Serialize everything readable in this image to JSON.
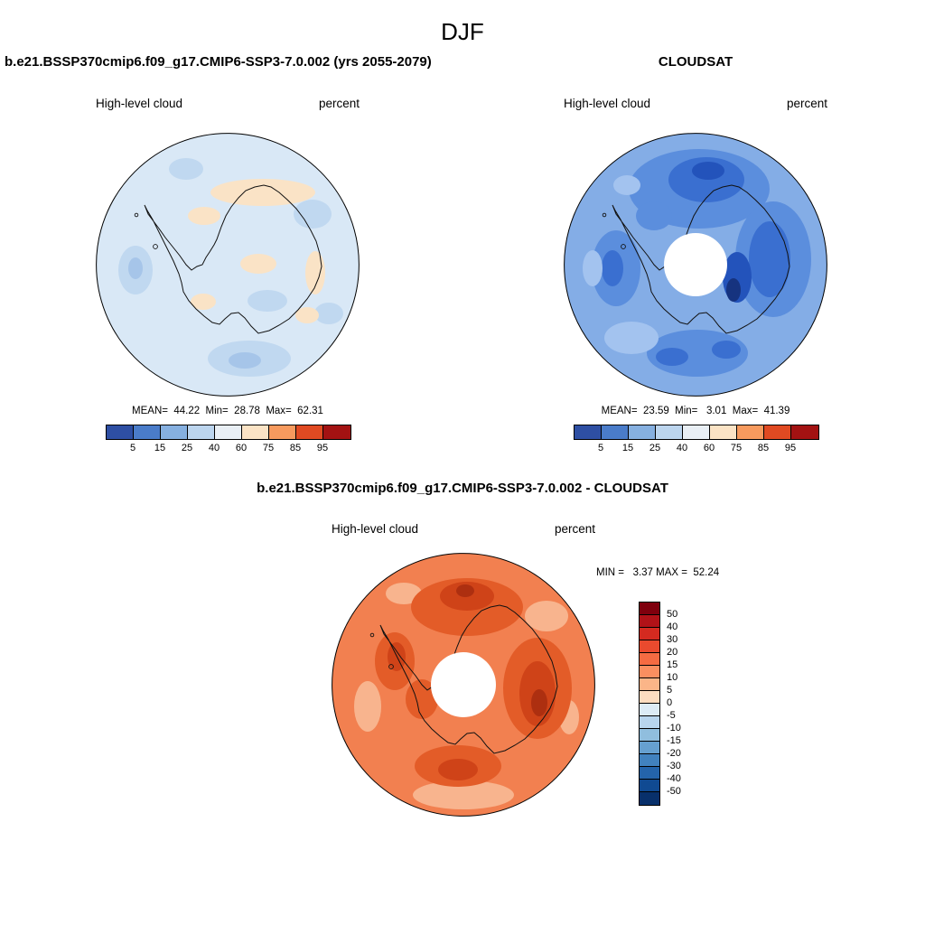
{
  "page_title": "DJF",
  "model_panel": {
    "title": "b.e21.BSSP370cmip6.f09_g17.CMIP6-SSP3-7.0.002 (yrs 2055-2079)",
    "field": "High-level cloud",
    "units": "percent",
    "stats": "MEAN=  44.22  Min=  28.78  Max=  62.31"
  },
  "obs_panel": {
    "title": "CLOUDSAT",
    "field": "High-level cloud",
    "units": "percent",
    "stats": "MEAN=  23.59  Min=   3.01  Max=  41.39"
  },
  "diff_panel": {
    "title": "b.e21.BSSP370cmip6.f09_g17.CMIP6-SSP3-7.0.002 - CLOUDSAT",
    "field": "High-level cloud",
    "units": "percent",
    "stats": "MIN =   3.37 MAX =  52.24"
  },
  "colorbar_percent": {
    "ticks": [
      "5",
      "15",
      "25",
      "40",
      "60",
      "75",
      "85",
      "95"
    ],
    "colors": [
      "#2e4fa3",
      "#4a7cc9",
      "#86b0e0",
      "#bcd5ee",
      "#e9eff5",
      "#fbe3c5",
      "#f79a5e",
      "#e04a22",
      "#a31212"
    ]
  },
  "colorbar_diff": {
    "ticks": [
      "50",
      "40",
      "30",
      "20",
      "15",
      "10",
      "5",
      "0",
      "-5",
      "-10",
      "-15",
      "-20",
      "-30",
      "-40",
      "-50"
    ],
    "colors": [
      "#7f000d",
      "#b11218",
      "#d42a20",
      "#ea4a2e",
      "#f56b42",
      "#fa8f60",
      "#fbb588",
      "#fcdcc0",
      "#dcebf6",
      "#b8d5ee",
      "#90bede",
      "#66a0d0",
      "#4182bf",
      "#2464ab",
      "#104a92",
      "#08306b"
    ]
  },
  "chart_data": {
    "type": "heatmap",
    "subtype": "south-polar-stereographic contour maps (Antarctica)",
    "season": "DJF",
    "variable": "High-level cloud",
    "units": "percent",
    "panels": [
      {
        "id": "model",
        "title": "b.e21.BSSP370cmip6.f09_g17.CMIP6-SSP3-7.0.002 (yrs 2055-2079)",
        "mean": 44.22,
        "min": 28.78,
        "max": 62.31,
        "colorbar": "percent"
      },
      {
        "id": "obs",
        "title": "CLOUDSAT",
        "mean": 23.59,
        "min": 3.01,
        "max": 41.39,
        "colorbar": "percent",
        "note": "white circle at pole = no data poleward of satellite coverage"
      },
      {
        "id": "difference",
        "title": "b.e21.BSSP370cmip6.f09_g17.CMIP6-SSP3-7.0.002 - CLOUDSAT",
        "min": 3.37,
        "max": 52.24,
        "colorbar": "diff"
      }
    ],
    "colorbar_percent_levels": [
      5,
      15,
      25,
      40,
      60,
      75,
      85,
      95
    ],
    "colorbar_diff_levels": [
      50,
      40,
      30,
      20,
      15,
      10,
      5,
      0,
      -5,
      -10,
      -15,
      -20,
      -30,
      -40,
      -50
    ],
    "legend_position": {
      "percent": "horizontal, below each top map",
      "diff": "vertical, right of bottom map"
    }
  }
}
